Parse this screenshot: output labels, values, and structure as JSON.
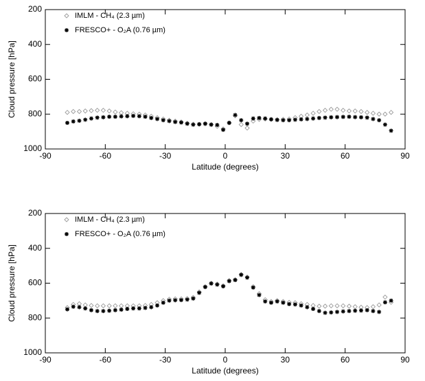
{
  "chart_data": [
    {
      "type": "scatter",
      "xlabel": "Latitude (degrees)",
      "ylabel": "Cloud pressure [hPa]",
      "xlim": [
        -90,
        90
      ],
      "xticks": [
        -90,
        -60,
        -30,
        0,
        30,
        60,
        90
      ],
      "ylim": [
        1000,
        200
      ],
      "yticks": [
        200,
        400,
        600,
        800,
        1000
      ],
      "x": [
        -79,
        -76,
        -73,
        -70,
        -67,
        -64,
        -61,
        -58,
        -55,
        -52,
        -49,
        -46,
        -43,
        -40,
        -37,
        -34,
        -31,
        -28,
        -25,
        -22,
        -19,
        -16,
        -13,
        -10,
        -7,
        -4,
        -1,
        2,
        5,
        8,
        11,
        14,
        17,
        20,
        23,
        26,
        29,
        32,
        35,
        38,
        41,
        44,
        47,
        50,
        53,
        56,
        59,
        62,
        65,
        68,
        71,
        74,
        77,
        80,
        83
      ],
      "series": [
        {
          "name": "IMLM - CH₄ (2.3 µm)",
          "color": "#999999",
          "marker": "diamond",
          "values": [
            790,
            785,
            785,
            782,
            780,
            778,
            778,
            782,
            788,
            792,
            795,
            798,
            800,
            805,
            812,
            820,
            828,
            835,
            840,
            845,
            852,
            858,
            858,
            855,
            860,
            870,
            885,
            850,
            810,
            860,
            880,
            840,
            830,
            828,
            830,
            832,
            830,
            828,
            820,
            812,
            805,
            795,
            785,
            778,
            772,
            772,
            778,
            782,
            782,
            785,
            790,
            795,
            800,
            800,
            790
          ]
        },
        {
          "name": "FRESCO+ - O₂A (0.76 µm)",
          "color": "#000000",
          "marker": "asterisk",
          "values": [
            850,
            842,
            838,
            832,
            825,
            820,
            818,
            815,
            815,
            813,
            812,
            810,
            812,
            815,
            822,
            828,
            835,
            840,
            845,
            848,
            855,
            860,
            858,
            855,
            860,
            862,
            890,
            850,
            805,
            835,
            855,
            825,
            822,
            825,
            830,
            833,
            835,
            835,
            832,
            830,
            828,
            825,
            822,
            820,
            818,
            817,
            816,
            815,
            817,
            818,
            820,
            828,
            835,
            860,
            895
          ]
        }
      ]
    },
    {
      "type": "scatter",
      "xlabel": "Latitude (degrees)",
      "ylabel": "Cloud pressure [hPa]",
      "xlim": [
        -90,
        90
      ],
      "xticks": [
        -90,
        -60,
        -30,
        0,
        30,
        60,
        90
      ],
      "ylim": [
        1000,
        200
      ],
      "yticks": [
        200,
        400,
        600,
        800,
        1000
      ],
      "x": [
        -79,
        -76,
        -73,
        -70,
        -67,
        -64,
        -61,
        -58,
        -55,
        -52,
        -49,
        -46,
        -43,
        -40,
        -37,
        -34,
        -31,
        -28,
        -25,
        -22,
        -19,
        -16,
        -13,
        -10,
        -7,
        -4,
        -1,
        2,
        5,
        8,
        11,
        14,
        17,
        20,
        23,
        26,
        29,
        32,
        35,
        38,
        41,
        44,
        47,
        50,
        53,
        56,
        59,
        62,
        65,
        68,
        71,
        74,
        77,
        80,
        83
      ],
      "series": [
        {
          "name": "IMLM - CH₄ (2.3 µm)",
          "color": "#999999",
          "marker": "diamond",
          "values": [
            740,
            722,
            718,
            725,
            728,
            730,
            730,
            730,
            730,
            730,
            730,
            730,
            730,
            728,
            722,
            712,
            700,
            692,
            690,
            690,
            688,
            682,
            650,
            620,
            600,
            605,
            615,
            585,
            580,
            550,
            565,
            620,
            660,
            695,
            705,
            700,
            705,
            710,
            712,
            718,
            722,
            728,
            732,
            732,
            730,
            730,
            730,
            732,
            735,
            738,
            740,
            735,
            725,
            680,
            710
          ]
        },
        {
          "name": "FRESCO+ - O₂A (0.76 µm)",
          "color": "#000000",
          "marker": "asterisk",
          "values": [
            750,
            735,
            738,
            745,
            755,
            760,
            760,
            758,
            755,
            752,
            748,
            745,
            745,
            742,
            738,
            728,
            712,
            700,
            698,
            697,
            694,
            688,
            655,
            622,
            602,
            608,
            618,
            588,
            582,
            552,
            568,
            625,
            668,
            705,
            712,
            705,
            712,
            720,
            722,
            728,
            738,
            748,
            760,
            770,
            768,
            765,
            762,
            760,
            758,
            757,
            755,
            760,
            765,
            710,
            700
          ]
        }
      ]
    }
  ]
}
